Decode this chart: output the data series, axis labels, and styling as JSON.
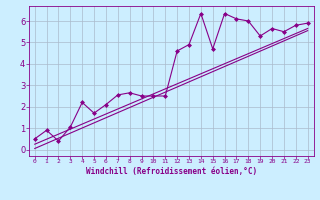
{
  "xlabel": "Windchill (Refroidissement éolien,°C)",
  "bg_color": "#cceeff",
  "line_color": "#880088",
  "grid_color": "#aabbcc",
  "xlim": [
    -0.5,
    23.5
  ],
  "ylim": [
    -0.3,
    6.7
  ],
  "xticks": [
    0,
    1,
    2,
    3,
    4,
    5,
    6,
    7,
    8,
    9,
    10,
    11,
    12,
    13,
    14,
    15,
    16,
    17,
    18,
    19,
    20,
    21,
    22,
    23
  ],
  "yticks": [
    0,
    1,
    2,
    3,
    4,
    5,
    6
  ],
  "data_x": [
    0,
    1,
    2,
    3,
    4,
    5,
    6,
    7,
    8,
    9,
    10,
    11,
    12,
    13,
    14,
    15,
    16,
    17,
    18,
    19,
    20,
    21,
    22,
    23
  ],
  "data_y": [
    0.5,
    0.9,
    0.4,
    1.05,
    2.2,
    1.7,
    2.1,
    2.55,
    2.65,
    2.5,
    2.5,
    2.5,
    4.6,
    4.9,
    6.35,
    4.7,
    6.35,
    6.1,
    6.0,
    5.3,
    5.65,
    5.5,
    5.8,
    5.9
  ],
  "trend_x": [
    0,
    23
  ],
  "trend_y": [
    0.25,
    5.65
  ],
  "trend2_x": [
    0,
    23
  ],
  "trend2_y": [
    0.05,
    5.55
  ]
}
